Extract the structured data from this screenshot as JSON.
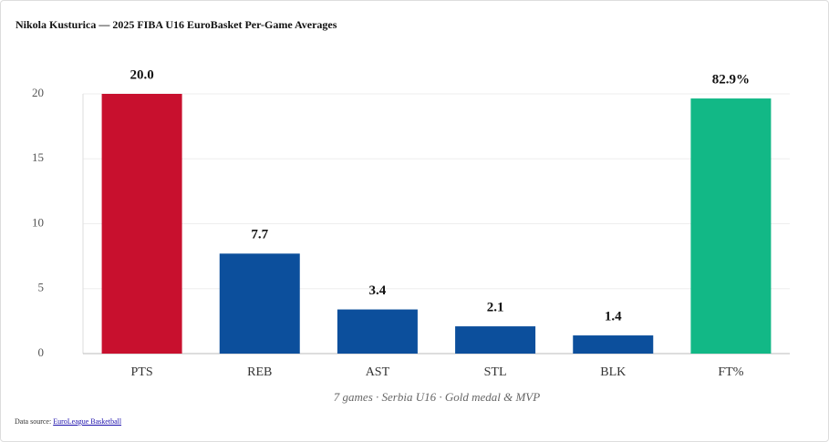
{
  "chart_data": {
    "type": "bar",
    "title": "Nikola Kusturica — 2025 FIBA U16 EuroBasket Per-Game Averages",
    "subtitle": "7 games · Serbia U16 · Gold medal & MVP",
    "source_label": "Data source:",
    "source_link": "EuroLeague Basketball",
    "categories": [
      "PTS",
      "REB",
      "AST",
      "STL",
      "BLK",
      "FT%"
    ],
    "values": [
      20,
      7.7,
      3.4,
      2.1,
      1.4,
      82.9
    ],
    "value_labels": [
      "20.0",
      "7.7",
      "3.4",
      "2.1",
      "1.4",
      "82.9%"
    ],
    "colors": [
      "#c8102e",
      "#0c4f9c",
      "#0c4f9c",
      "#0c4f9c",
      "#0c4f9c",
      "#12b886"
    ],
    "axes": [
      "y",
      "y",
      "y",
      "y",
      "y",
      "y2"
    ],
    "ylim": [
      0,
      20
    ],
    "yticks": [
      0,
      5,
      10,
      15,
      20
    ],
    "y2lim": [
      0,
      84.4
    ],
    "grid": true
  }
}
